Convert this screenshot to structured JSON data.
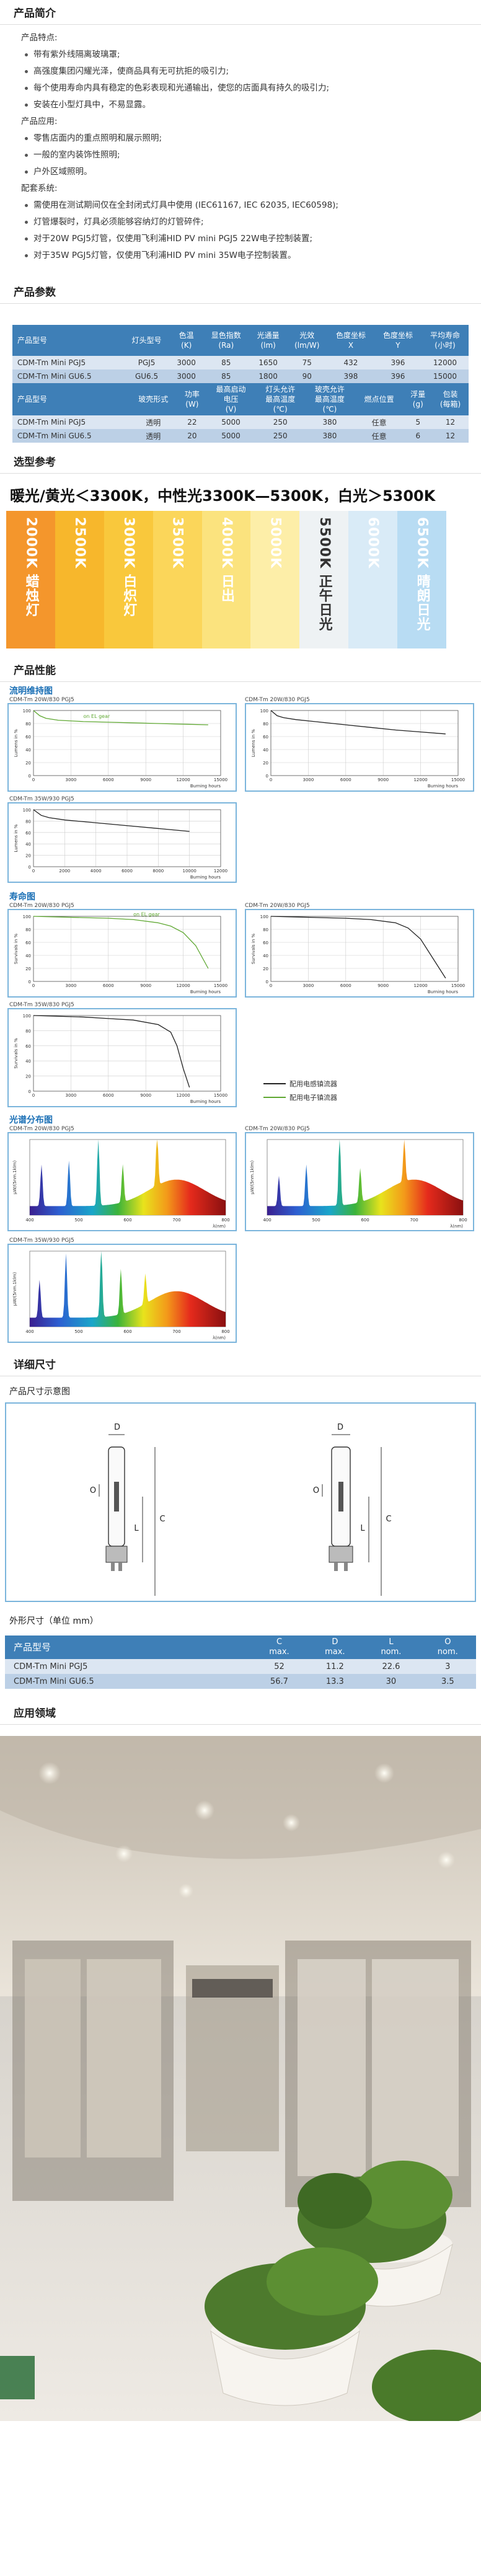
{
  "sections": {
    "intro": "产品简介",
    "params": "产品参数",
    "color_ref": "选型参考",
    "performance": "产品性能",
    "dimensions": "详细尺寸",
    "application": "应用领域"
  },
  "intro": {
    "features_title": "产品特点:",
    "features": [
      "带有紫外线隔离玻璃罩;",
      "高强度集团闪耀光泽，使商品具有无可抗拒的吸引力;",
      "每个使用寿命内具有稳定的色彩表现和光通输出，使您的店面具有持久的吸引力;",
      "安装在小型灯具中，不易显露。"
    ],
    "app_title": "产品应用:",
    "apps": [
      "零售店面内的重点照明和展示照明;",
      "一般的室内装饰性照明;",
      "户外区域照明。"
    ],
    "system_title": "配套系统:",
    "systems": [
      "需使用在测试期间仅在全封闭式灯具中使用 (IEC61167, IEC 62035, IEC60598);",
      "灯管爆裂时，灯具必须能够容纳灯的灯管碎件;",
      "对于20W PGJ5灯管，仅使用飞利浦HID PV mini PGJ5 22W电子控制装置;",
      "对于35W PGJ5灯管，仅使用飞利浦HID PV mini 35W电子控制装置。"
    ]
  },
  "params_table1": {
    "headers": [
      "产品型号",
      "灯头型号",
      "色温\n(K)",
      "显色指数\n(Ra)",
      "光通量\n(lm)",
      "光效\n(lm/W)",
      "色度坐标\nX",
      "色度坐标\nY",
      "平均寿命\n(小时)"
    ],
    "rows": [
      [
        "CDM-Tm Mini PGJ5",
        "PGJ5",
        "3000",
        "85",
        "1650",
        "75",
        "432",
        "396",
        "12000"
      ],
      [
        "CDM-Tm Mini GU6.5",
        "GU6.5",
        "3000",
        "85",
        "1800",
        "90",
        "398",
        "396",
        "15000"
      ]
    ]
  },
  "params_table2": {
    "headers": [
      "产品型号",
      "玻壳形式",
      "功率\n(W)",
      "最高启动\n电压\n(V)",
      "灯头允许\n最高温度\n(℃)",
      "玻壳允许\n最高温度\n(℃)",
      "燃点位置",
      "浮量\n(g)",
      "包装\n(每箱)"
    ],
    "rows": [
      [
        "CDM-Tm Mini PGJ5",
        "透明",
        "22",
        "5000",
        "250",
        "380",
        "任意",
        "5",
        "12"
      ],
      [
        "CDM-Tm Mini GU6.5",
        "透明",
        "20",
        "5000",
        "250",
        "380",
        "任意",
        "6",
        "12"
      ]
    ]
  },
  "color_ref": {
    "headline": "暖光/黄光＜3300K，中性光3300K—5300K，白光＞5300K",
    "swatches": [
      {
        "label": "2000K 蜡烛灯",
        "color": "#f4962c",
        "text": "#ffffff"
      },
      {
        "label": "2500K",
        "color": "#f7b72c",
        "text": "#ffffff"
      },
      {
        "label": "3000K 白炽灯",
        "color": "#f9c83c",
        "text": "#ffffff"
      },
      {
        "label": "3500K",
        "color": "#fbd65a",
        "text": "#ffffff"
      },
      {
        "label": "4000K 日出",
        "color": "#fbe37e",
        "text": "#ffffff"
      },
      {
        "label": "5000K",
        "color": "#fdeea8",
        "text": "#ffffff"
      },
      {
        "label": "5500K 正午日光",
        "color": "#eef2f4",
        "text": "#333333"
      },
      {
        "label": "6000K",
        "color": "#d9ebf7",
        "text": "#ffffff"
      },
      {
        "label": "6500K 晴朗日光",
        "color": "#b8dcf3",
        "text": "#ffffff"
      }
    ]
  },
  "performance": {
    "lumen_title": "流明维持图",
    "life_title": "寿命图",
    "spectrum_title": "光谱分布图",
    "captions": {
      "lm1": "CDM-Tm 20W/830 PGJ5",
      "lm2": "CDM-Tm 20W/830 PGJ5",
      "lm3": "CDM-Tm 35W/930 PGJ5",
      "lf1": "CDM-Tm 20W/830 PGJ5",
      "lf2": "CDM-Tm 20W/830 PGJ5",
      "lf3": "CDM-Tm 35W/830 PGJ5",
      "sp1": "CDM-Tm 20W/830 PGJ5",
      "sp2": "CDM-Tm 20W/830 PGJ5",
      "sp3": "CDM-Tm 35W/930 PGJ5"
    },
    "lumen_ylabel": "Lumens in %",
    "survival_ylabel": "Survivals in %",
    "xlabel": "Burning hours",
    "on_el_gear": "on EL gear",
    "legend": [
      "配用电感镇流器",
      "配用电子镇流器"
    ],
    "spectrum_ylabel": "μW/(5nm.1klm)",
    "spectrum_xlabel": "λ(nm)"
  },
  "dimensions": {
    "diagram_title": "产品尺寸示意图",
    "table_label": "外形尺寸（单位  mm）",
    "headers": [
      "产品型号",
      "C\nmax.",
      "D\nmax.",
      "L\nnom.",
      "O\nnom."
    ],
    "rows": [
      [
        "CDM-Tm Mini PGJ5",
        "52",
        "11.2",
        "22.6",
        "3"
      ],
      [
        "CDM-Tm Mini GU6.5",
        "56.7",
        "13.3",
        "30",
        "3.5"
      ]
    ],
    "letters": [
      "D",
      "C",
      "L",
      "O"
    ]
  },
  "colors": {
    "accent": "#3e7fb7",
    "heading_blue": "#1a6fb5",
    "row_light": "#dce6f2",
    "row_dark": "#bcd0e6"
  },
  "chart_data": [
    {
      "type": "line",
      "title": "CDM-Tm 20W/830 PGJ5",
      "ylabel": "Lumens in %",
      "xlabel": "Burning hours",
      "xlim": [
        0,
        15000
      ],
      "ylim": [
        0,
        100
      ],
      "x": [
        0,
        500,
        1000,
        2000,
        4000,
        6000,
        8000,
        10000,
        12000,
        14000
      ],
      "series": [
        {
          "name": "on EL gear",
          "values": [
            100,
            92,
            88,
            85,
            83,
            82,
            81,
            80,
            79,
            78
          ]
        }
      ]
    },
    {
      "type": "line",
      "title": "CDM-Tm 20W/830 PGJ5",
      "ylabel": "Lumens in %",
      "xlabel": "Burning hours",
      "xlim": [
        0,
        15000
      ],
      "ylim": [
        0,
        100
      ],
      "x": [
        0,
        500,
        1000,
        2000,
        4000,
        6000,
        8000,
        10000,
        12000,
        14000
      ],
      "series": [
        {
          "values": [
            100,
            92,
            89,
            86,
            82,
            78,
            74,
            70,
            67,
            64
          ]
        }
      ]
    },
    {
      "type": "line",
      "title": "CDM-Tm 35W/930 PGJ5",
      "ylabel": "Lumens in %",
      "xlabel": "Burning hours",
      "xlim": [
        0,
        12000
      ],
      "ylim": [
        0,
        100
      ],
      "x": [
        0,
        500,
        1000,
        2000,
        4000,
        6000,
        8000,
        10000
      ],
      "series": [
        {
          "values": [
            100,
            90,
            86,
            82,
            77,
            72,
            67,
            62
          ]
        }
      ]
    },
    {
      "type": "line",
      "title": "CDM-Tm 20W/830 PGJ5",
      "ylabel": "Survivals in %",
      "xlabel": "Burning hours",
      "xlim": [
        0,
        15000
      ],
      "ylim": [
        0,
        100
      ],
      "x": [
        0,
        2000,
        4000,
        6000,
        8000,
        10000,
        11000,
        12000,
        13000,
        14000
      ],
      "series": [
        {
          "name": "on EL gear",
          "values": [
            100,
            99,
            98,
            97,
            95,
            90,
            85,
            75,
            55,
            20
          ]
        }
      ]
    },
    {
      "type": "line",
      "title": "CDM-Tm 20W/830 PGJ5",
      "ylabel": "Survivals in %",
      "xlabel": "Burning hours",
      "xlim": [
        0,
        15000
      ],
      "ylim": [
        0,
        100
      ],
      "x": [
        0,
        2000,
        4000,
        6000,
        8000,
        10000,
        11000,
        12000,
        13000,
        14000
      ],
      "series": [
        {
          "values": [
            100,
            99,
            98,
            97,
            95,
            90,
            82,
            65,
            35,
            5
          ]
        }
      ]
    },
    {
      "type": "line",
      "title": "CDM-Tm 35W/830 PGJ5",
      "ylabel": "Survivals in %",
      "xlabel": "Burning hours",
      "xlim": [
        0,
        15000
      ],
      "ylim": [
        0,
        100
      ],
      "x": [
        0,
        2000,
        4000,
        6000,
        8000,
        10000,
        11000,
        11500,
        12000,
        12500
      ],
      "series": [
        {
          "values": [
            100,
            99,
            98,
            96,
            94,
            88,
            78,
            60,
            30,
            5
          ]
        }
      ]
    },
    {
      "type": "area",
      "title": "CDM-Tm 20W/830 PGJ5",
      "xlim": [
        400,
        800
      ],
      "xlabel": "λ(nm)"
    },
    {
      "type": "area",
      "title": "CDM-Tm 20W/830 PGJ5",
      "xlim": [
        400,
        800
      ],
      "xlabel": "λ(nm)"
    },
    {
      "type": "area",
      "title": "CDM-Tm 35W/930 PGJ5",
      "xlim": [
        400,
        800
      ],
      "xlabel": "λ(nm)"
    }
  ]
}
